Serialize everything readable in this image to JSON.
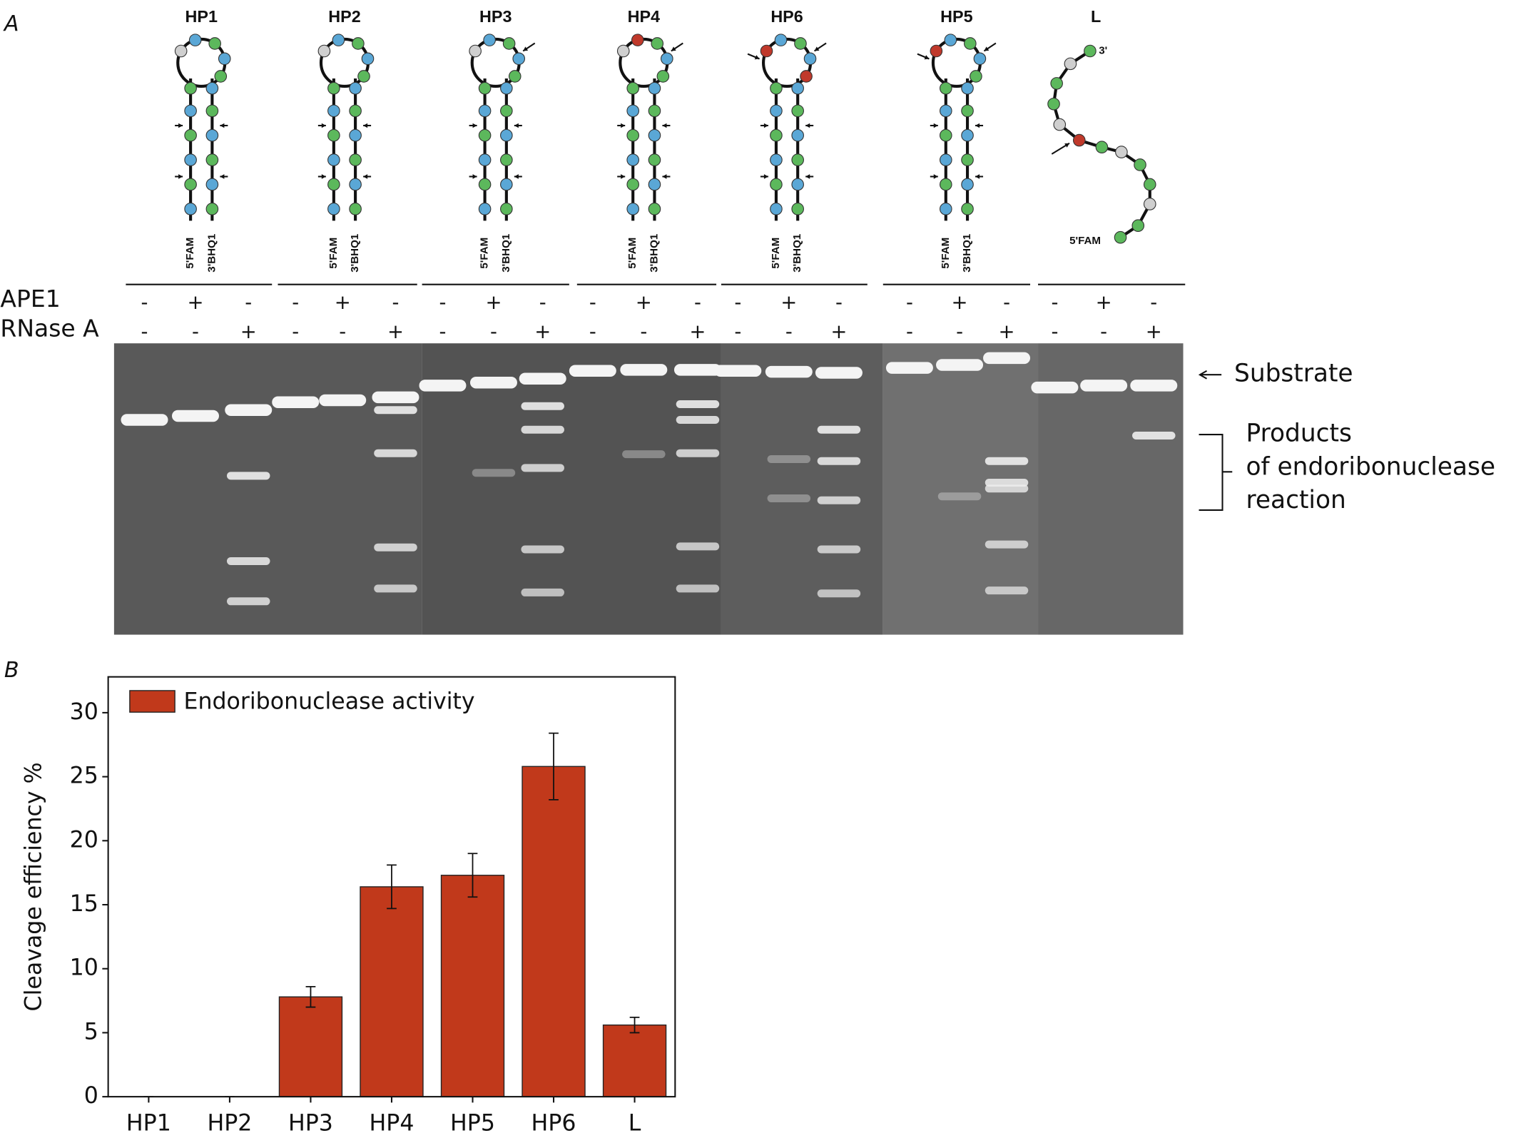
{
  "panel_a": {
    "label": "A",
    "constructs": [
      {
        "name": "HP1",
        "ends": [
          "5'FAM",
          "3'BHQ1"
        ]
      },
      {
        "name": "HP2",
        "ends": [
          "5'FAM",
          "3'BHQ1"
        ]
      },
      {
        "name": "HP3",
        "ends": [
          "5'FAM",
          "3'BHQ1"
        ]
      },
      {
        "name": "HP4",
        "ends": [
          "5'FAM",
          "3'BHQ1"
        ]
      },
      {
        "name": "HP6",
        "ends": [
          "5'FAM",
          "3'BHQ1"
        ]
      },
      {
        "name": "HP5",
        "ends": [
          "5'FAM",
          "3'BHQ1"
        ]
      },
      {
        "name": "L",
        "ends": [
          "5'FAM",
          "3'"
        ]
      }
    ],
    "rows": [
      {
        "label": "APE1",
        "signs": [
          "-",
          "+",
          "-",
          "-",
          "+",
          "-",
          "-",
          "+",
          "-",
          "-",
          "+",
          "-",
          "-",
          "+",
          "-",
          "-",
          "+",
          "-",
          "-",
          "+",
          "-"
        ]
      },
      {
        "label": "RNase A",
        "signs": [
          "-",
          "-",
          "+",
          "-",
          "-",
          "+",
          "-",
          "-",
          "+",
          "-",
          "-",
          "+",
          "-",
          "-",
          "+",
          "-",
          "-",
          "+",
          "-",
          "-",
          "+"
        ]
      }
    ],
    "substrate_label": "Substrate",
    "products_label": [
      "Products",
      "of endoribonuclease",
      "reaction"
    ]
  },
  "chart_data": {
    "type": "bar",
    "label": "B",
    "ylabel": "Cleavage efficiency %",
    "categories": [
      "HP1",
      "HP2",
      "HP3",
      "HP4",
      "HP5",
      "HP6",
      "L"
    ],
    "series": [
      {
        "name": "Endoribonuclease activity",
        "color": "#c1391b",
        "values": [
          0,
          0,
          7.8,
          16.4,
          17.3,
          25.8,
          5.6
        ],
        "errors": [
          0,
          0,
          0.8,
          1.7,
          1.7,
          2.6,
          0.6
        ]
      }
    ],
    "ylim": [
      0,
      32.8
    ],
    "yticks": [
      0,
      5,
      10,
      15,
      20,
      25,
      30
    ],
    "legend": "upper-left"
  }
}
